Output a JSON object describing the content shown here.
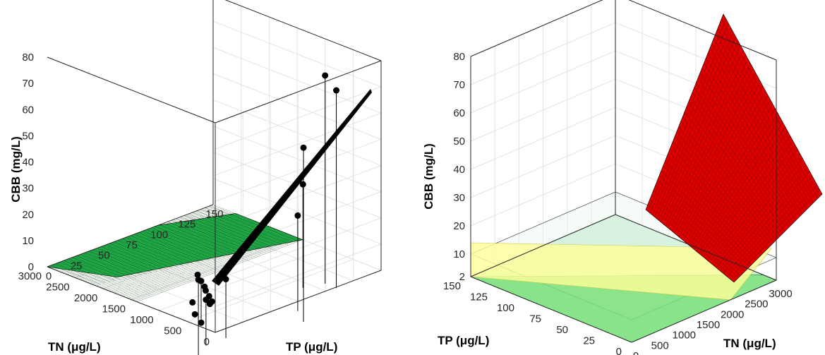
{
  "chart_data": [
    {
      "type": "scatter",
      "zlabel": "CBB (mg/L)",
      "xlabel": "TN (μg/L)",
      "ylabel": "TP (μg/L)",
      "xlim": [
        0,
        3000
      ],
      "ylim": [
        0,
        150
      ],
      "zlim": [
        0,
        80
      ],
      "x_ticks": [
        "0",
        "500",
        "1000",
        "1500",
        "2000",
        "2500",
        "3000"
      ],
      "y_ticks": [
        "0",
        "25",
        "50",
        "75",
        "100",
        "125",
        "150"
      ],
      "z_ticks": [
        "0",
        "10",
        "20",
        "30",
        "40",
        "50",
        "60",
        "70",
        "80"
      ],
      "grid": true,
      "surface_color": "#22b14c",
      "marker_color": "#000000",
      "points": [
        {
          "x": 350,
          "y": 5,
          "z": 0
        },
        {
          "x": 600,
          "y": 12,
          "z": 0
        },
        {
          "x": 900,
          "y": 25,
          "z": 0
        },
        {
          "x": 400,
          "y": 5,
          "z": 16
        },
        {
          "x": 600,
          "y": 22,
          "z": 4
        },
        {
          "x": 650,
          "y": 28,
          "z": 1
        },
        {
          "x": 750,
          "y": 35,
          "z": 0
        },
        {
          "x": 900,
          "y": 40,
          "z": 0
        },
        {
          "x": 1000,
          "y": 42,
          "z": 1
        },
        {
          "x": 1100,
          "y": 46,
          "z": 1
        },
        {
          "x": 1200,
          "y": 48,
          "z": 2
        },
        {
          "x": 1500,
          "y": 60,
          "z": 0
        },
        {
          "x": 600,
          "y": 40,
          "z": 9
        },
        {
          "x": 300,
          "y": 95,
          "z": 53
        },
        {
          "x": 600,
          "y": 105,
          "z": 23
        },
        {
          "x": 1100,
          "y": 135,
          "z": 26
        },
        {
          "x": 1000,
          "y": 150,
          "z": 66
        },
        {
          "x": 800,
          "y": 150,
          "z": 62
        }
      ]
    },
    {
      "type": "surface",
      "zlabel": "CBB (mg/L)",
      "xlabel": "TN (μg/L)",
      "ylabel": "TP (μg/L)",
      "xlim": [
        0,
        3000
      ],
      "ylim": [
        0,
        150
      ],
      "zlim": [
        0,
        80
      ],
      "x_ticks": [
        "0",
        "500",
        "1000",
        "1500",
        "2000",
        "2500",
        "3000"
      ],
      "y_ticks": [
        "0",
        "25",
        "50",
        "75",
        "100",
        "125",
        "150"
      ],
      "z_ticks": [
        "2",
        "10",
        "20",
        "30",
        "40",
        "50",
        "60",
        "70",
        "80"
      ],
      "grid": true,
      "threshold_planes": [
        2,
        10
      ],
      "colors": {
        "above_10": "#e00000",
        "between_2_10": "#ffff99",
        "below_2": "#7ee07e"
      }
    }
  ]
}
